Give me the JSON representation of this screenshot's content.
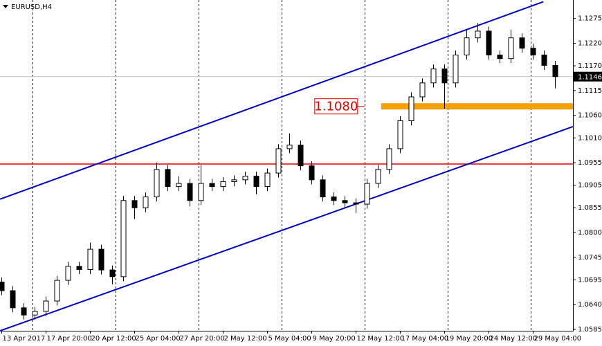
{
  "chart_data": {
    "type": "candlestick",
    "title": "EURUSD,H4",
    "x": [
      0,
      1,
      2,
      3,
      4,
      5,
      6,
      7,
      8,
      9,
      10,
      11,
      12,
      13,
      14,
      15,
      16,
      17,
      18,
      19,
      20,
      21,
      22,
      23,
      24,
      25,
      26,
      27,
      28,
      29,
      30,
      31,
      32,
      33,
      34,
      35,
      36,
      37,
      38,
      39,
      40,
      41,
      42,
      43,
      44,
      45,
      46,
      47,
      48,
      49,
      50
    ],
    "open": [
      1.069,
      1.0671,
      1.0633,
      1.0617,
      1.0625,
      1.0648,
      1.0694,
      1.0725,
      1.0718,
      1.0763,
      1.0717,
      1.0702,
      1.0871,
      1.0855,
      1.0879,
      1.094,
      1.0902,
      1.0909,
      1.0871,
      1.0909,
      1.0902,
      1.0913,
      1.0917,
      1.0925,
      1.0902,
      1.0932,
      1.0986,
      1.0994,
      1.0948,
      1.0917,
      1.0879,
      1.0871,
      1.0866,
      1.0863,
      1.0909,
      1.094,
      1.0986,
      1.1048,
      1.1101,
      1.1132,
      1.1163,
      1.1132,
      1.1194,
      1.1232,
      1.1247,
      1.1194,
      1.1186,
      1.1232,
      1.1209,
      1.1194,
      1.1171
    ],
    "high": [
      1.07,
      1.0681,
      1.0643,
      1.0635,
      1.0658,
      1.0704,
      1.0735,
      1.0735,
      1.0778,
      1.0773,
      1.0727,
      1.0881,
      1.0881,
      1.0889,
      1.0955,
      1.095,
      1.0925,
      1.0919,
      1.095,
      1.0919,
      1.0923,
      1.0927,
      1.0935,
      1.0935,
      1.0942,
      1.0996,
      1.102,
      1.1004,
      1.0958,
      1.0927,
      1.0889,
      1.0881,
      1.0876,
      1.0919,
      1.095,
      1.0996,
      1.1058,
      1.1111,
      1.1142,
      1.1173,
      1.1173,
      1.1204,
      1.125,
      1.1265,
      1.1257,
      1.1204,
      1.125,
      1.1242,
      1.1219,
      1.1204,
      1.1181
    ],
    "low": [
      1.0661,
      1.0623,
      1.0607,
      1.0607,
      1.0615,
      1.0638,
      1.0684,
      1.0708,
      1.0708,
      1.0707,
      1.0685,
      1.0692,
      1.083,
      1.0845,
      1.0869,
      1.0892,
      1.0892,
      1.0858,
      1.0861,
      1.0892,
      1.0892,
      1.0903,
      1.0907,
      1.0885,
      1.0892,
      1.0922,
      1.0976,
      1.0938,
      1.0907,
      1.0869,
      1.0861,
      1.0856,
      1.0843,
      1.0853,
      1.0899,
      1.093,
      1.0976,
      1.1038,
      1.1091,
      1.1122,
      1.1075,
      1.1122,
      1.1184,
      1.1222,
      1.1184,
      1.1176,
      1.1176,
      1.1199,
      1.1184,
      1.1161,
      1.112
    ],
    "close": [
      1.0671,
      1.0633,
      1.0617,
      1.0625,
      1.0648,
      1.0694,
      1.0725,
      1.0718,
      1.0763,
      1.0717,
      1.0702,
      1.0871,
      1.0855,
      1.0879,
      1.094,
      1.0902,
      1.0909,
      1.0871,
      1.0909,
      1.0902,
      1.0913,
      1.0917,
      1.0925,
      1.0902,
      1.0932,
      1.0986,
      1.0994,
      1.0948,
      1.0917,
      1.0879,
      1.0871,
      1.0866,
      1.0863,
      1.0909,
      1.094,
      1.0986,
      1.1048,
      1.1101,
      1.1132,
      1.1163,
      1.1132,
      1.1194,
      1.1232,
      1.1247,
      1.1194,
      1.1186,
      1.1232,
      1.1209,
      1.1194,
      1.1171,
      1.1146
    ],
    "xlim": [
      -0.125,
      51.625
    ],
    "ylim": [
      1.0582,
      1.1316
    ],
    "xticks": [
      {
        "value": 0,
        "label": "13 Apr 2017"
      },
      {
        "value": 4,
        "label": "17 Apr 20:00"
      },
      {
        "value": 8,
        "label": "20 Apr 12:00"
      },
      {
        "value": 12,
        "label": "25 Apr 04:00"
      },
      {
        "value": 16,
        "label": "27 Apr 20:00"
      },
      {
        "value": 20,
        "label": "2 May 12:00"
      },
      {
        "value": 24,
        "label": "5 May 04:00"
      },
      {
        "value": 28,
        "label": "9 May 20:00"
      },
      {
        "value": 32,
        "label": "12 May 12:00"
      },
      {
        "value": 36,
        "label": "17 May 04:00"
      },
      {
        "value": 40,
        "label": "19 May 20:00"
      },
      {
        "value": 44,
        "label": "24 May 12:00"
      },
      {
        "value": 48,
        "label": "29 May 04:00"
      }
    ],
    "yticks": [
      1.1275,
      {
        "value": 1.122,
        "label": "1.1220"
      },
      {
        "value": 1.117,
        "label": "1.1170"
      },
      1.1115,
      {
        "value": 1.106,
        "label": "1.1060"
      },
      {
        "value": 1.101,
        "label": "1.1010"
      },
      1.0955,
      1.0905,
      1.0855,
      {
        "value": 1.08,
        "label": "1.0800"
      },
      1.0745,
      1.0695,
      {
        "value": 1.064,
        "label": "1.0640"
      },
      1.0585
    ],
    "xgrid": [
      2.8125,
      10.3125,
      17.8125,
      25.3125,
      32.8125,
      40.3125,
      47.8125
    ],
    "channels": [
      {
        "color": "#0000cd",
        "x": [
          -0.125,
          48.94
        ],
        "y": [
          1.0874,
          1.1312
        ]
      },
      {
        "color": "#0000cd",
        "x": [
          -0.125,
          51.625
        ],
        "y": [
          1.0582,
          1.1035
        ]
      }
    ],
    "level": {
      "value": 1.0952,
      "color": "#e00000"
    },
    "zone": {
      "start": 34.3,
      "values": [
        1.108
      ],
      "value_labels": [
        "1.1080"
      ],
      "color": "#f5a000",
      "label_color": "#e00000"
    },
    "price": {
      "value": 1.1146,
      "color": "#c0c0c0"
    }
  }
}
